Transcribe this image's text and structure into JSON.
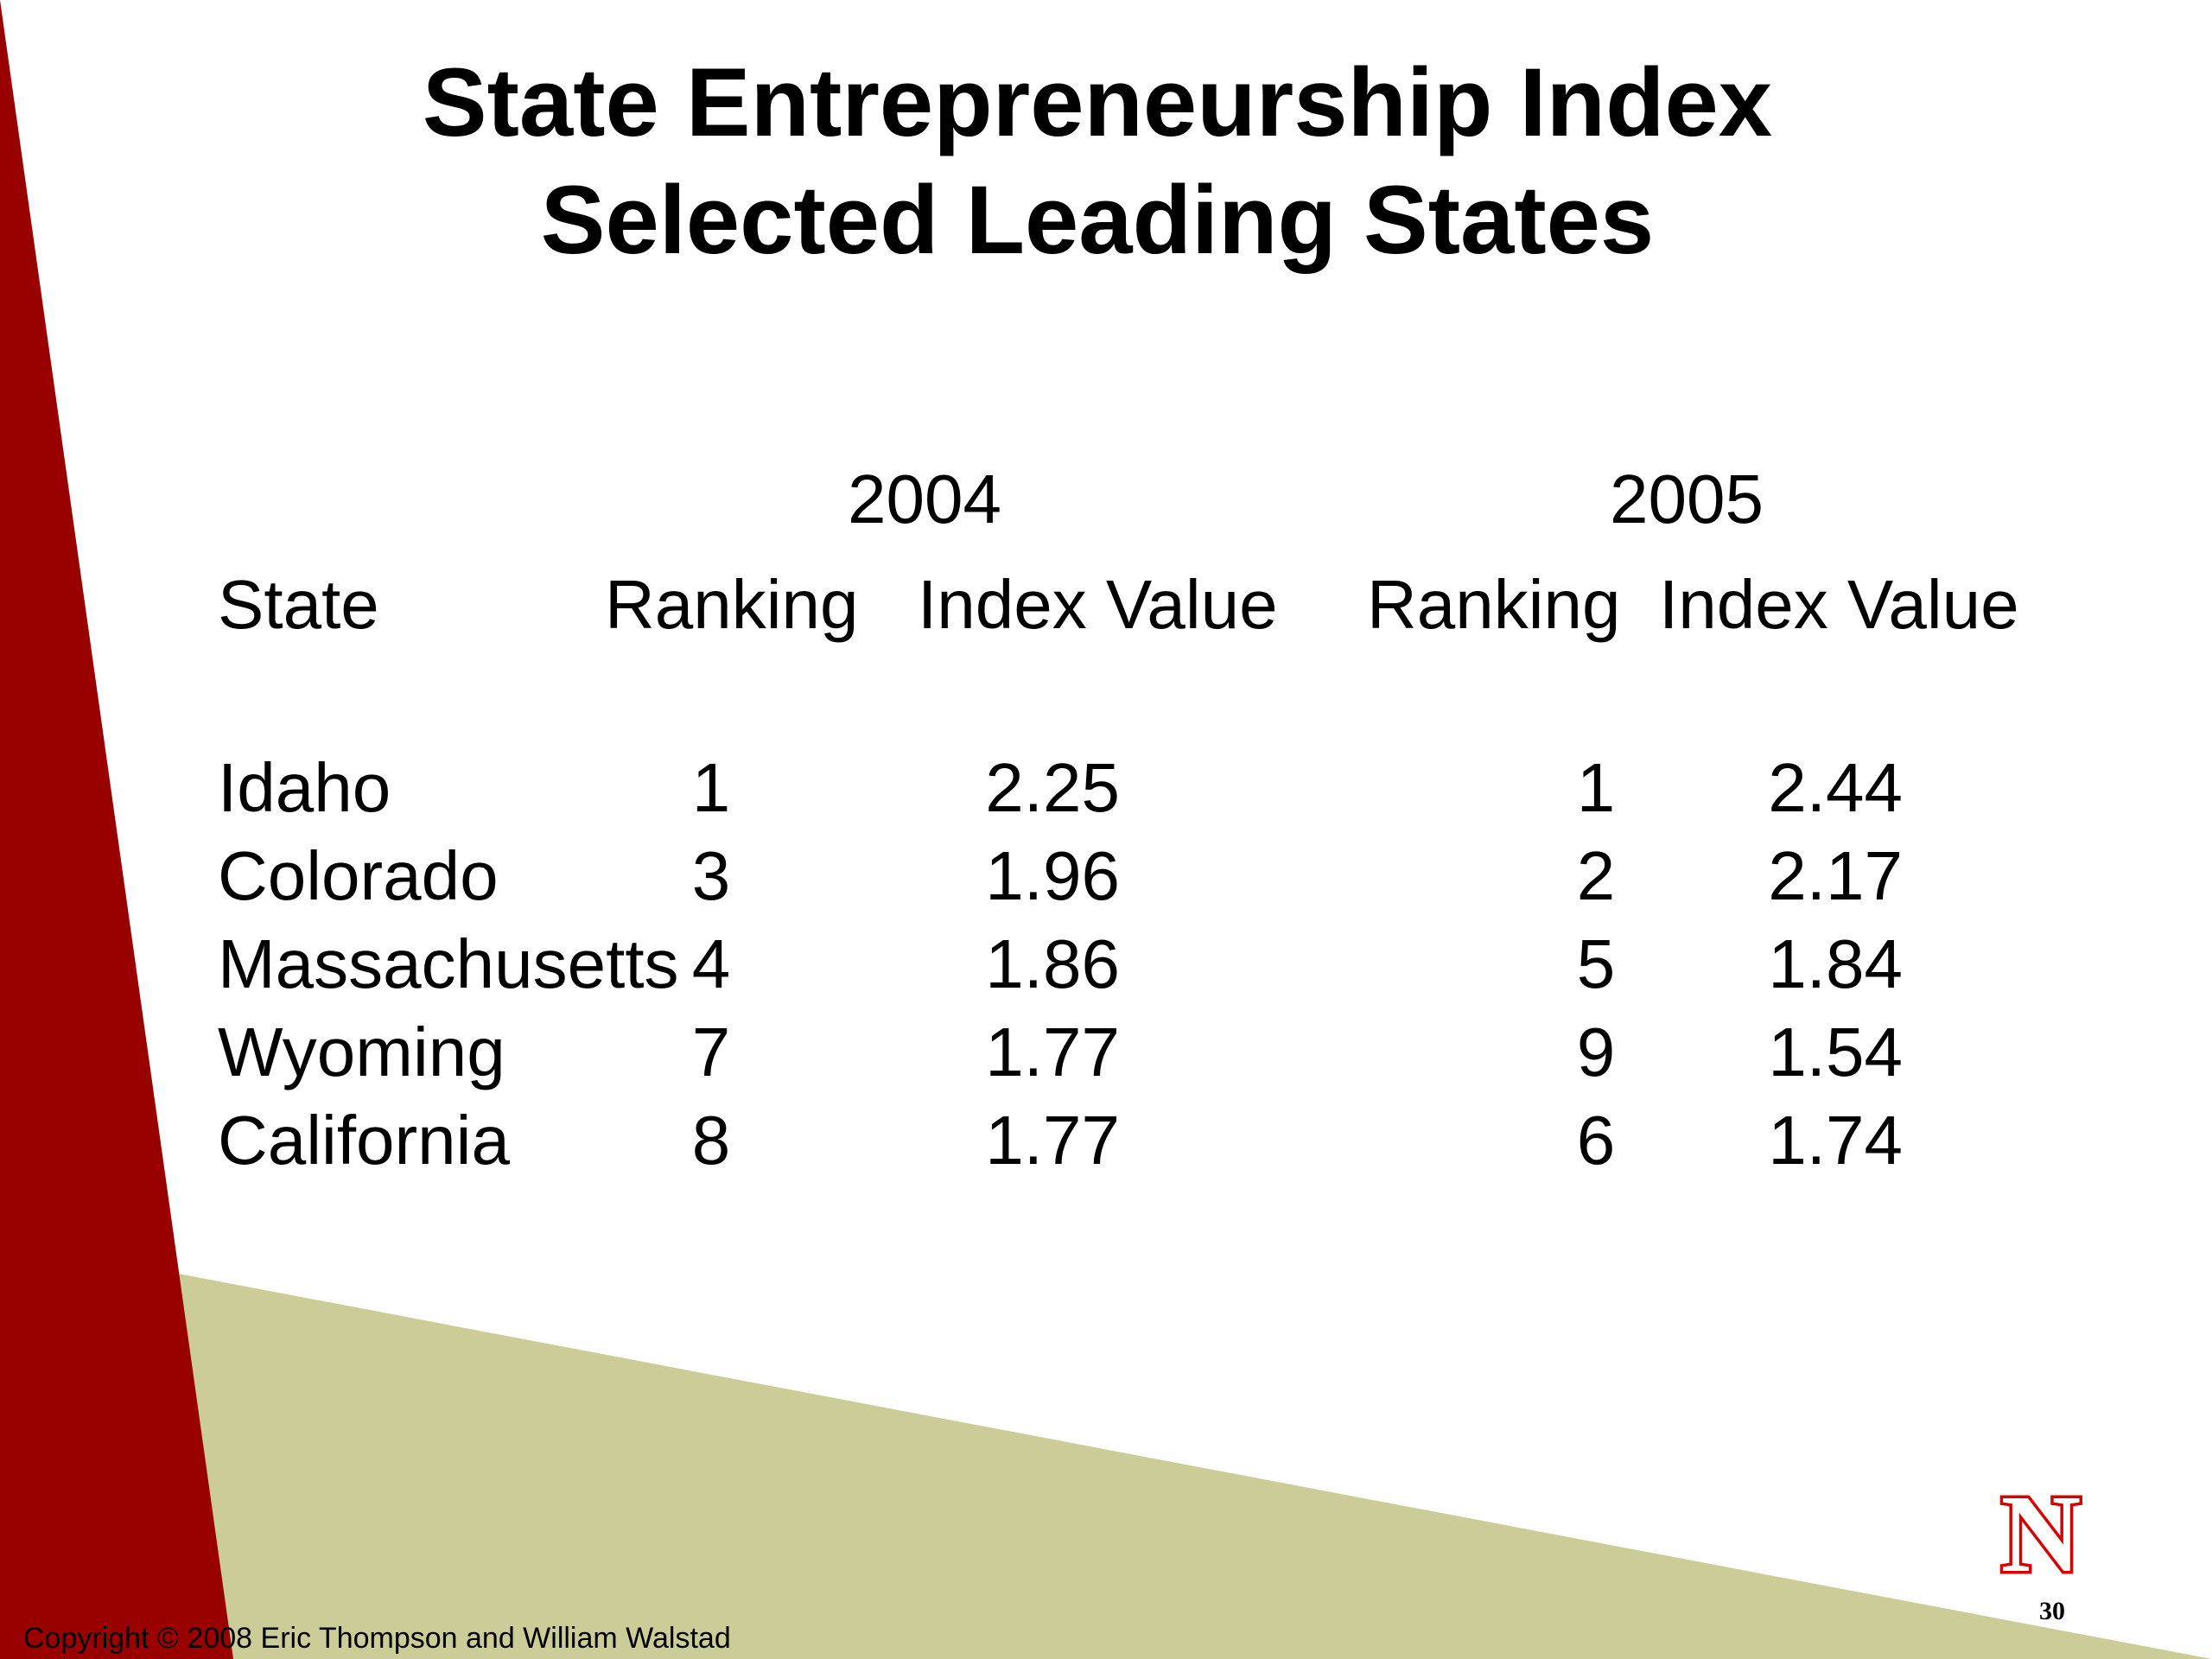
{
  "slide": {
    "title_line1": "State Entrepreneurship Index",
    "title_line2": "Selected Leading States",
    "slide_number": "30",
    "copyright": "Copyright © 2008 Eric Thompson and William Walstad",
    "logo_letter": "N"
  },
  "table": {
    "year_headers": [
      "2004",
      "2005"
    ],
    "column_headers": [
      "State",
      "Ranking",
      "Index Value",
      "Ranking",
      "Index Value"
    ],
    "rows": [
      {
        "state": "Idaho",
        "rank_2004": "1",
        "index_2004": "2.25",
        "rank_2005": "1",
        "index_2005": "2.44"
      },
      {
        "state": "Colorado",
        "rank_2004": "3",
        "index_2004": "1.96",
        "rank_2005": "2",
        "index_2005": "2.17"
      },
      {
        "state": "Massachusetts",
        "rank_2004": "4",
        "index_2004": "1.86",
        "rank_2005": "5",
        "index_2005": "1.84"
      },
      {
        "state": "Wyoming",
        "rank_2004": "7",
        "index_2004": "1.77",
        "rank_2005": "9",
        "index_2005": "1.54"
      },
      {
        "state": "California",
        "rank_2004": "8",
        "index_2004": "1.77",
        "rank_2005": "6",
        "index_2005": "1.74"
      }
    ]
  },
  "colors": {
    "red_band": "#990000",
    "olive_band": "#cccc99",
    "logo_red": "#d50000"
  }
}
